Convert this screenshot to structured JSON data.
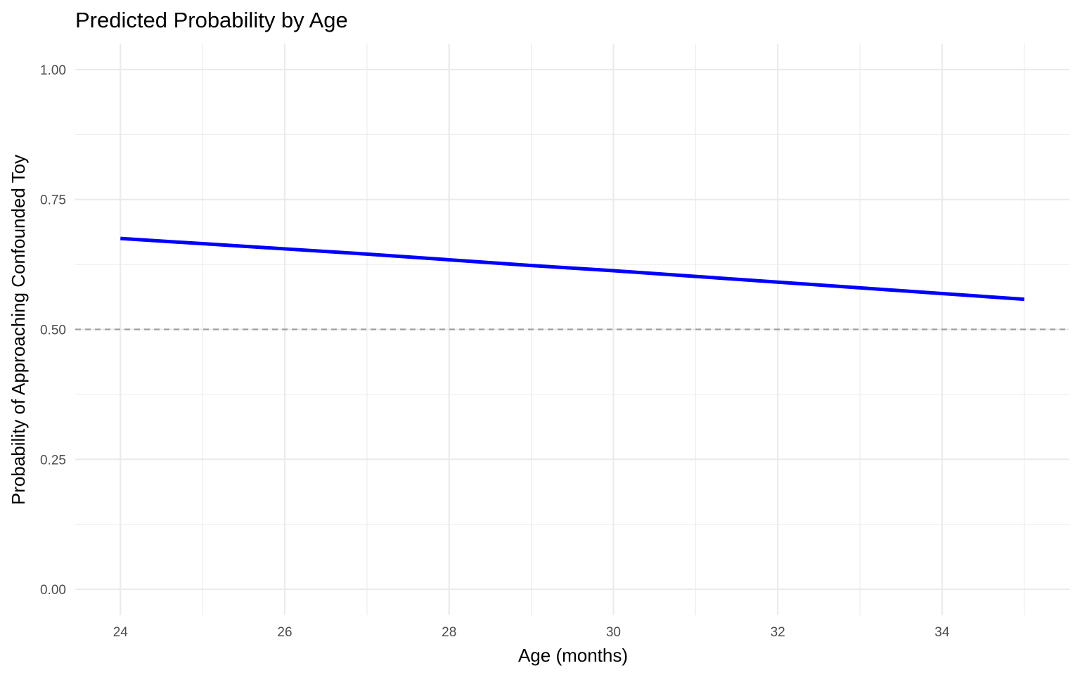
{
  "chart_data": {
    "type": "line",
    "title": "Predicted Probability by Age",
    "xlabel": "Age (months)",
    "ylabel": "Probability of Approaching Confounded Toy",
    "xlim": [
      23.45,
      35.55
    ],
    "ylim": [
      -0.05,
      1.05
    ],
    "x_ticks": [
      24,
      26,
      28,
      30,
      32,
      34
    ],
    "x_tick_labels": [
      "24",
      "26",
      "28",
      "30",
      "32",
      "34"
    ],
    "y_ticks": [
      0,
      0.25,
      0.5,
      0.75,
      1
    ],
    "y_tick_labels": [
      "0.00",
      "0.25",
      "0.50",
      "0.75",
      "1.00"
    ],
    "grid": true,
    "reference_line": {
      "y": 0.5,
      "style": "dashed",
      "color": "#a0a0a0"
    },
    "series": [
      {
        "color": "#0000ff",
        "x": [
          24,
          25,
          26,
          27,
          28,
          29,
          30,
          31,
          32,
          33,
          34,
          35
        ],
        "y": [
          0.675,
          0.665,
          0.655,
          0.645,
          0.634,
          0.623,
          0.613,
          0.602,
          0.591,
          0.58,
          0.569,
          0.558
        ]
      }
    ]
  }
}
